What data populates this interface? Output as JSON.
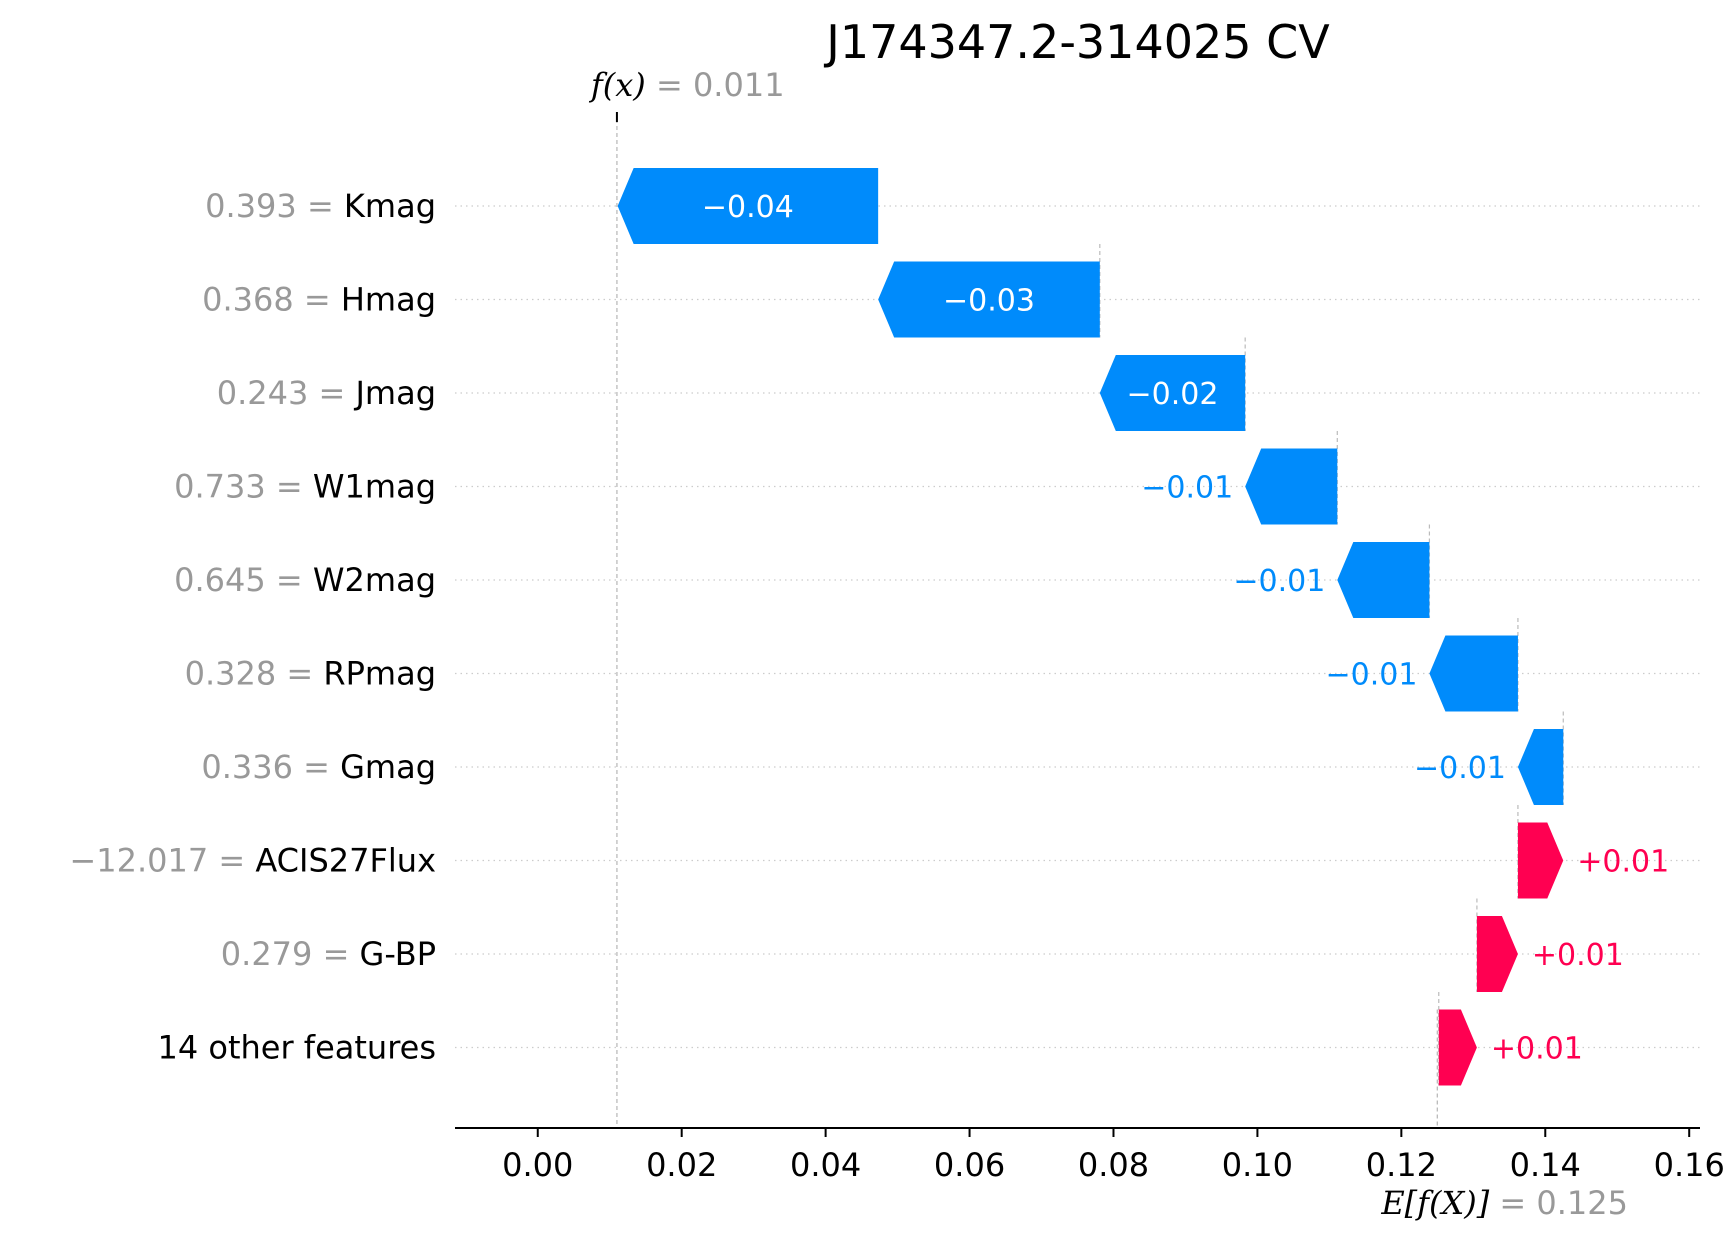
{
  "chart_data": {
    "type": "waterfall",
    "title": "J174347.2-314025 CV",
    "fx": {
      "label_f": "f",
      "label_x": "(x)",
      "eq": " = 0.011",
      "value": 0.011
    },
    "efx": {
      "label": "E[f(X)]",
      "eq": " = 0.125",
      "value": 0.125
    },
    "xlim": [
      -0.0115,
      0.1615
    ],
    "xticks": [
      {
        "value": 0.0,
        "label": "0.00"
      },
      {
        "value": 0.02,
        "label": "0.02"
      },
      {
        "value": 0.04,
        "label": "0.04"
      },
      {
        "value": 0.06,
        "label": "0.06"
      },
      {
        "value": 0.08,
        "label": "0.08"
      },
      {
        "value": 0.1,
        "label": "0.10"
      },
      {
        "value": 0.12,
        "label": "0.12"
      },
      {
        "value": 0.14,
        "label": "0.14"
      },
      {
        "value": 0.16,
        "label": "0.16"
      }
    ],
    "grid": "dotted horizontal at each feature row",
    "colors": {
      "negative": "#008bfb",
      "positive": "#ff0051",
      "value_text": "#999999",
      "name_text": "#000000"
    },
    "features": [
      {
        "value_text": "0.393",
        "name": "Kmag",
        "start": 0.0473,
        "end": 0.0111,
        "label": "−0.04",
        "label_inside": true
      },
      {
        "value_text": "0.368",
        "name": "Hmag",
        "start": 0.0781,
        "end": 0.0473,
        "label": "−0.03",
        "label_inside": true
      },
      {
        "value_text": "0.243",
        "name": "Jmag",
        "start": 0.0983,
        "end": 0.0781,
        "label": "−0.02",
        "label_inside": true
      },
      {
        "value_text": "0.733",
        "name": "W1mag",
        "start": 0.1111,
        "end": 0.0983,
        "label": "−0.01",
        "label_inside": false
      },
      {
        "value_text": "0.645",
        "name": "W2mag",
        "start": 0.1239,
        "end": 0.1111,
        "label": "−0.01",
        "label_inside": false
      },
      {
        "value_text": "0.328",
        "name": "RPmag",
        "start": 0.1362,
        "end": 0.1239,
        "label": "−0.01",
        "label_inside": false
      },
      {
        "value_text": "0.336",
        "name": "Gmag",
        "start": 0.1425,
        "end": 0.1362,
        "label": "−0.01",
        "label_inside": false
      },
      {
        "value_text": "−12.017",
        "name": "ACIS27Flux",
        "start": 0.1362,
        "end": 0.1425,
        "label": "+0.01",
        "label_inside": false
      },
      {
        "value_text": "0.279",
        "name": "G-BP",
        "start": 0.1305,
        "end": 0.1362,
        "label": "+0.01",
        "label_inside": false
      },
      {
        "value_text": "",
        "name": "14 other features",
        "start": 0.1252,
        "end": 0.1305,
        "label": "+0.01",
        "label_inside": false
      }
    ]
  }
}
